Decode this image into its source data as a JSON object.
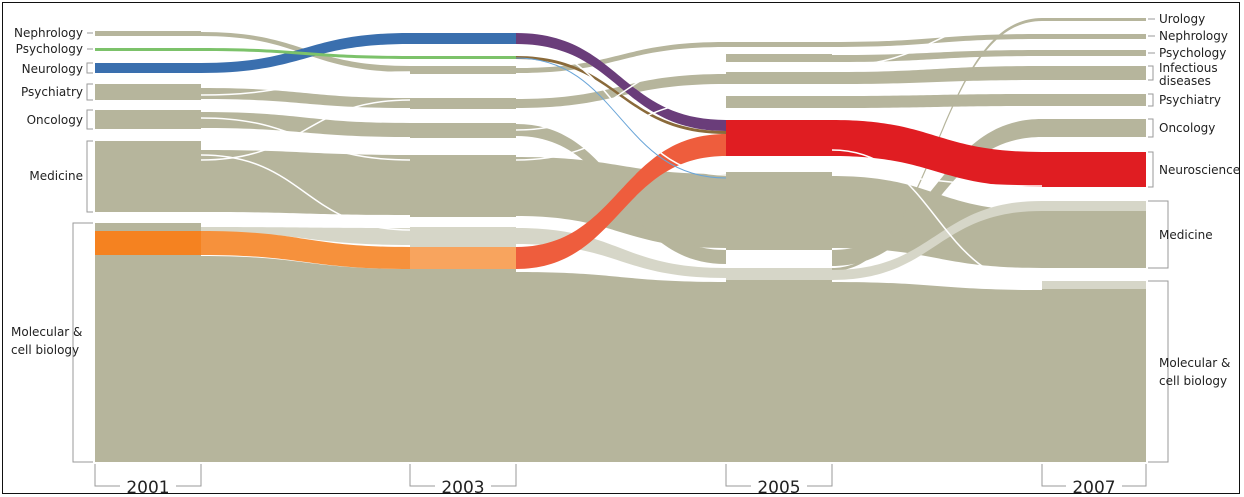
{
  "colors": {
    "neutral": "#b6b59c",
    "neutral_light": "#d6d6c8",
    "neuroscience": "#e01d22",
    "neurology": "#3a6fae",
    "psychology": "#7cc26a",
    "molecular_highlight": "#f58220"
  },
  "years": [
    "2001",
    "2003",
    "2005",
    "2007"
  ],
  "left_labels": {
    "nephrology": "Nephrology",
    "psychology": "Psychology",
    "neurology": "Neurology",
    "psychiatry": "Psychiatry",
    "oncology": "Oncology",
    "medicine": "Medicine",
    "molecular_1": "Molecular &",
    "molecular_2": "cell biology"
  },
  "right_labels": {
    "urology": "Urology",
    "nephrology": "Nephrology",
    "psychology": "Psychology",
    "infectious_1": "Infectious",
    "infectious_2": "diseases",
    "psychiatry": "Psychiatry",
    "oncology": "Oncology",
    "neuroscience": "Neuroscience",
    "medicine": "Medicine",
    "molecular_1": "Molecular &",
    "molecular_2": "cell biology"
  }
}
